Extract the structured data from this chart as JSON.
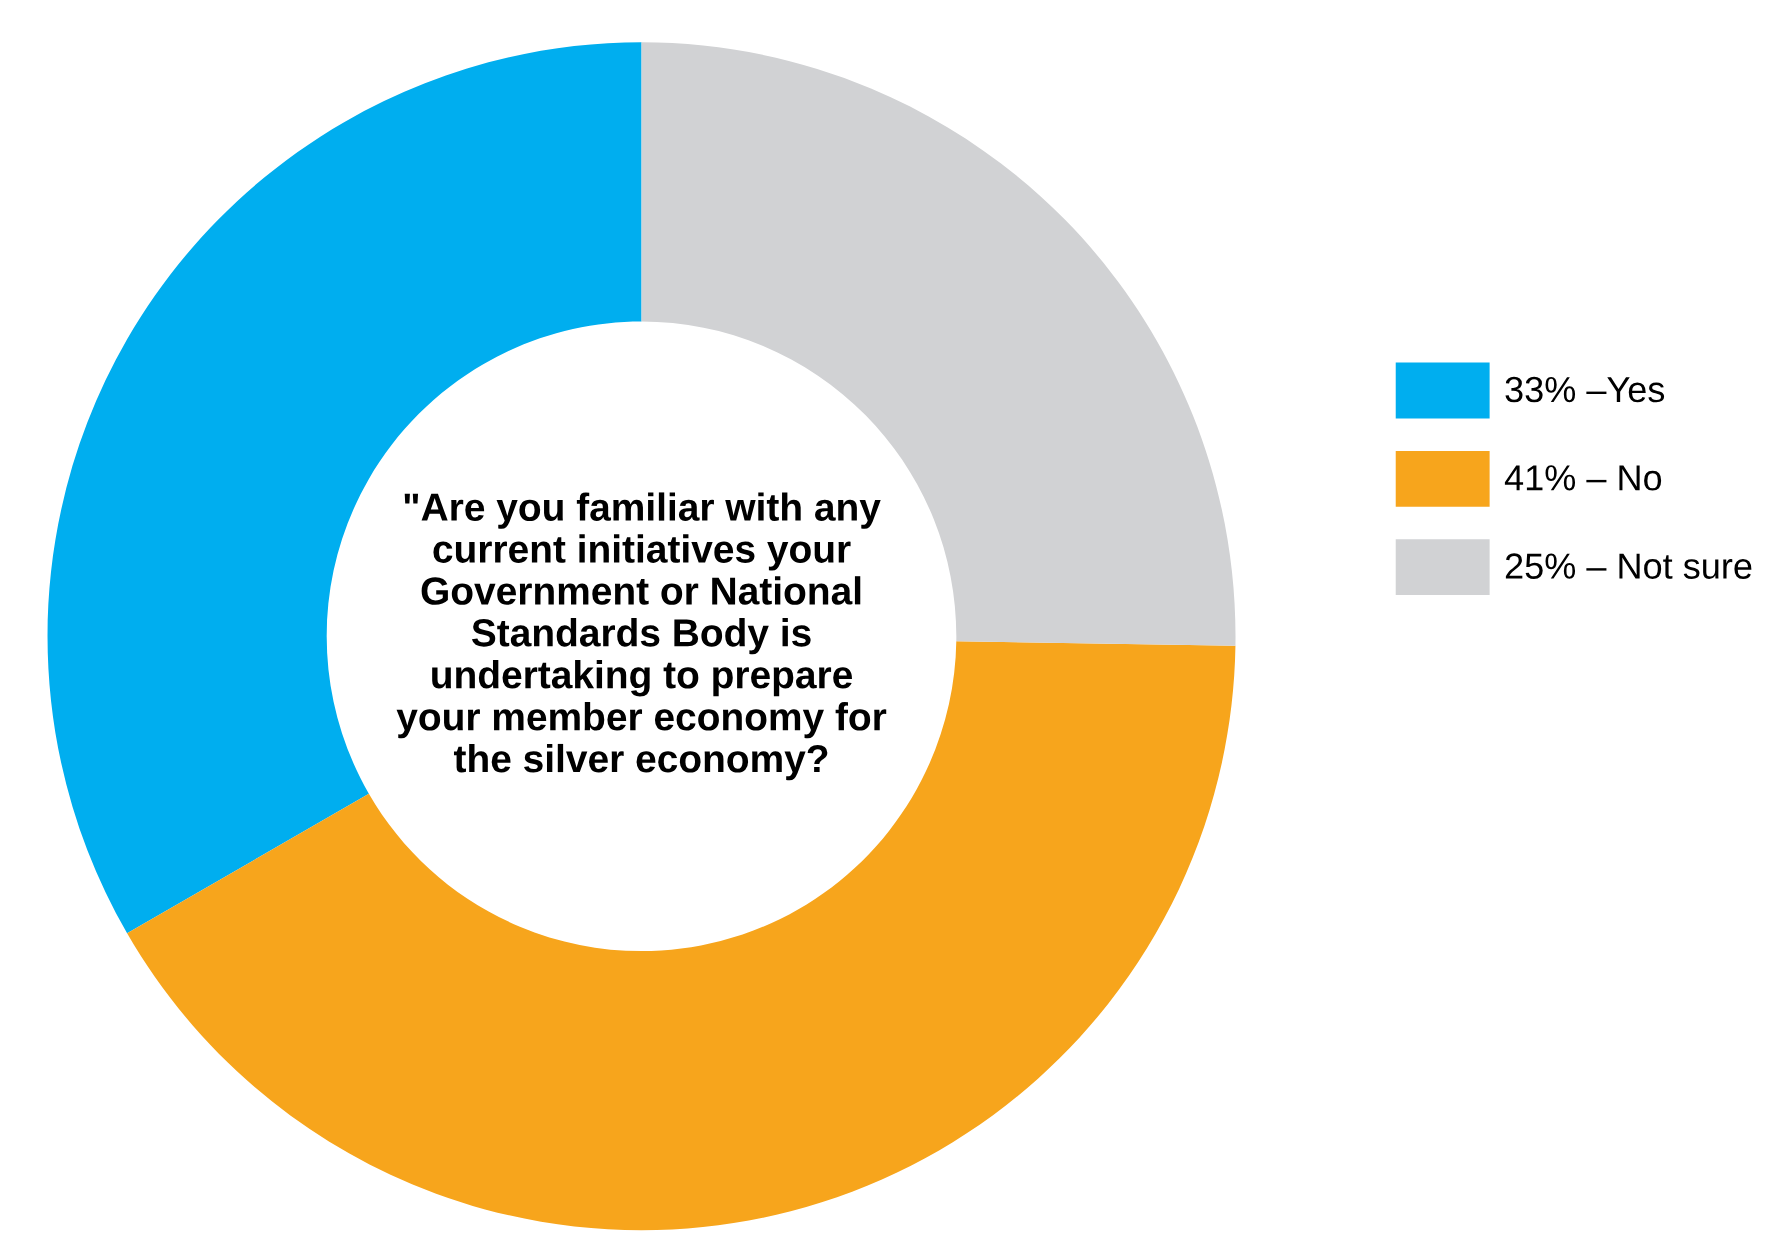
{
  "chart_data": {
    "type": "donut",
    "title": "\"Are you familiar with any current initiatives your Government or National Standards Body is undertaking to prepare your member economy for the silver economy?",
    "categories": [
      "33% –Yes",
      "41% – No",
      "25% – Not sure"
    ],
    "values": [
      33,
      41,
      25
    ],
    "colors": [
      "#00aeef",
      "#f7a51c",
      "#d1d2d4"
    ],
    "legend": "right"
  }
}
